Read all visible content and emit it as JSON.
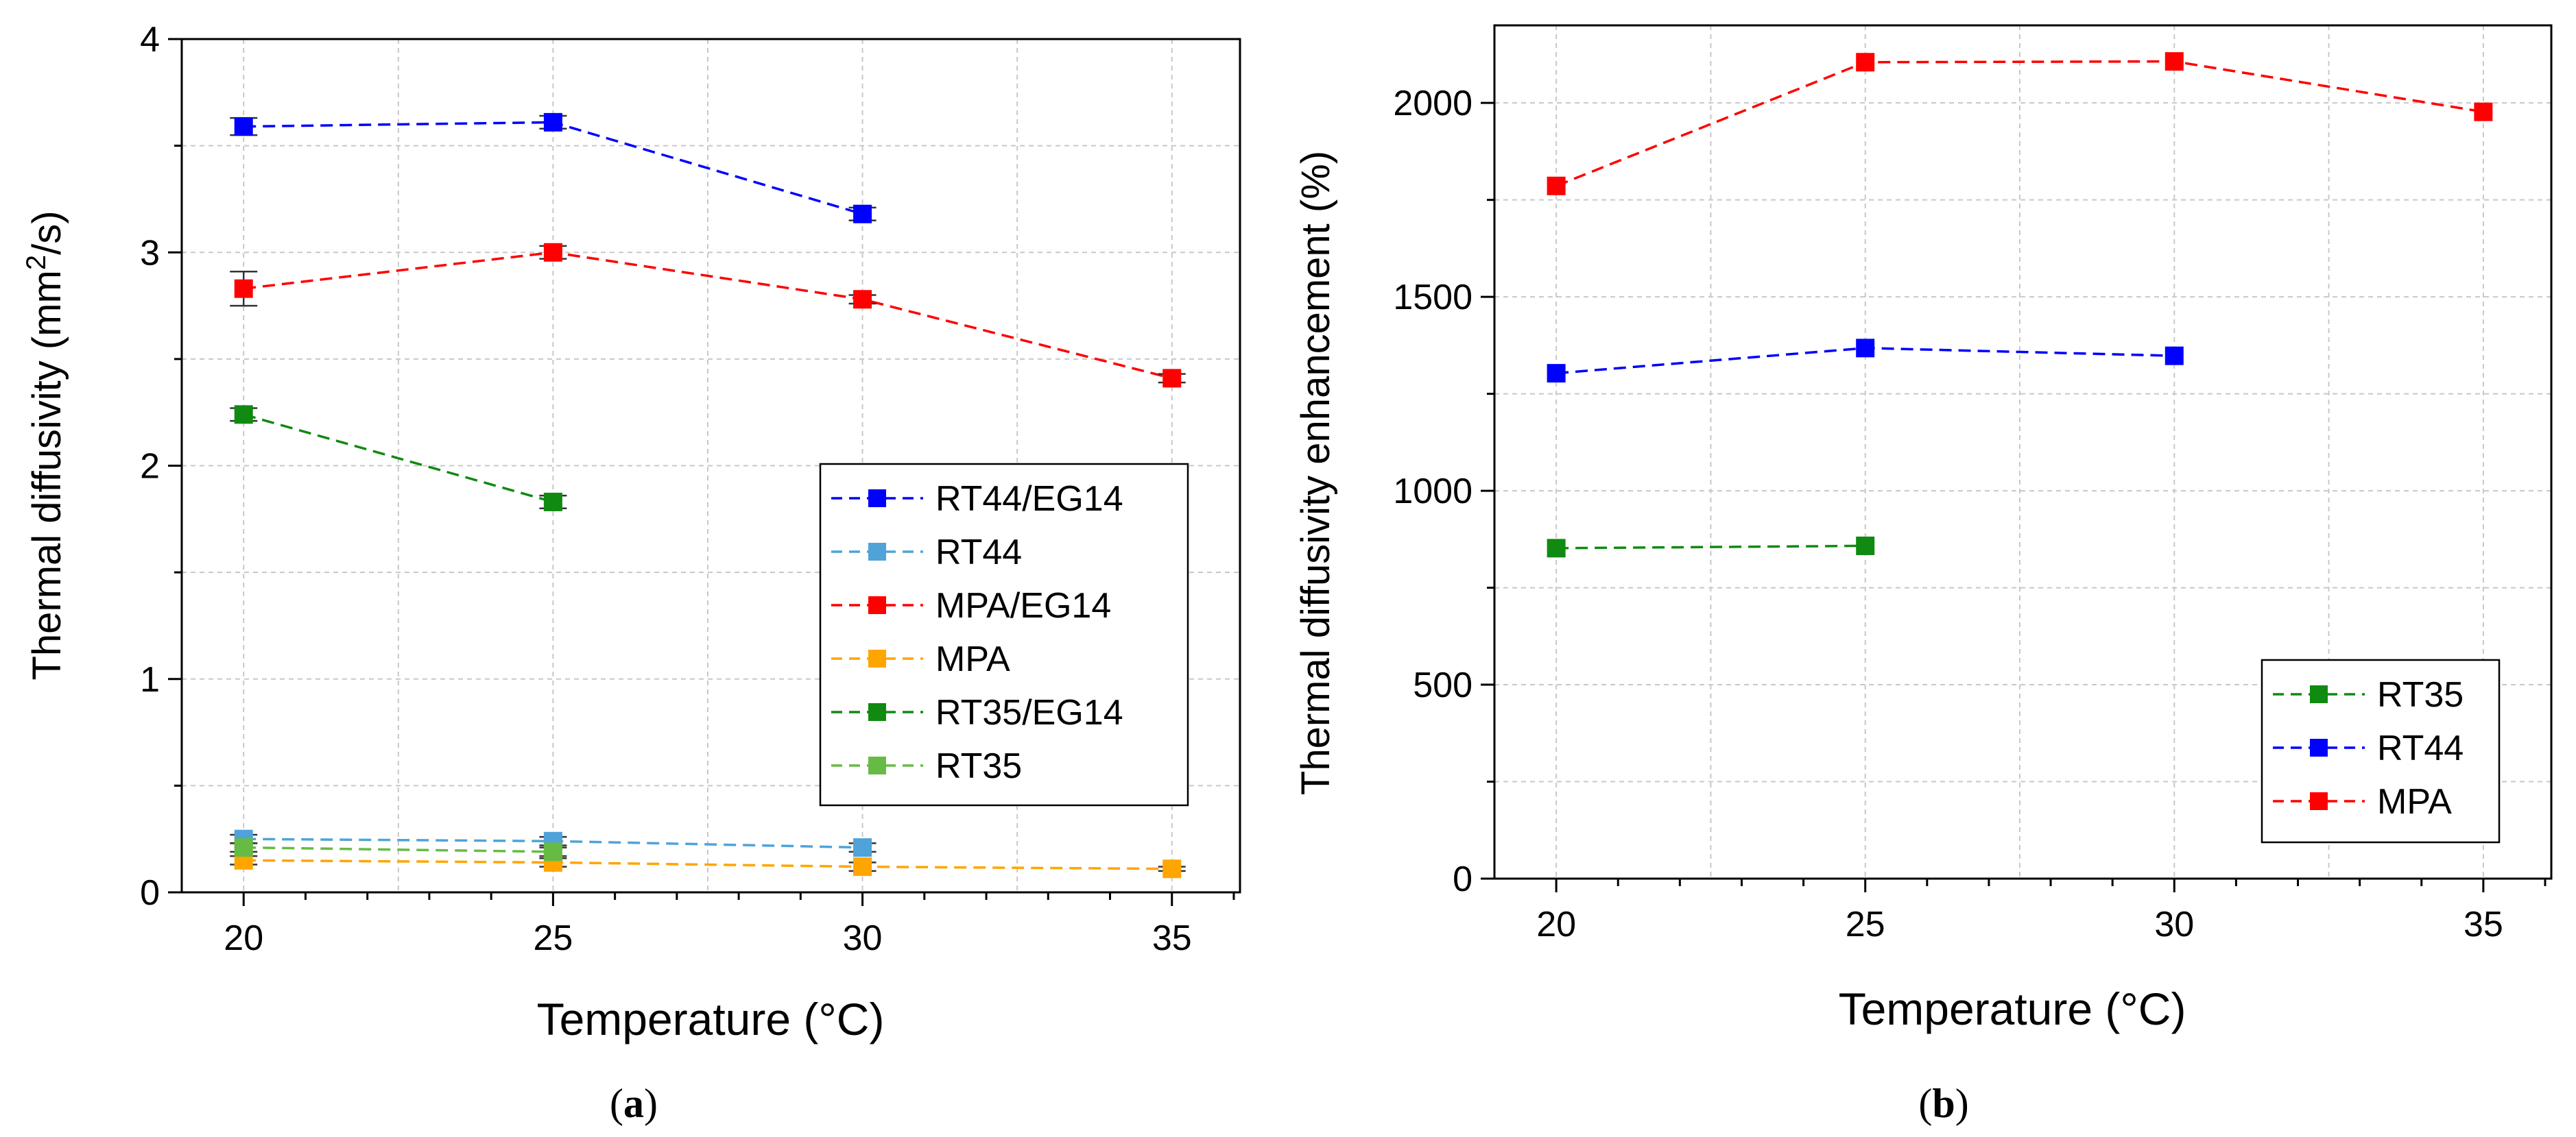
{
  "chart_data": [
    {
      "id": "a",
      "type": "line",
      "panel_label": "a",
      "xlabel": "Temperature (°C)",
      "ylabel_main": "Thermal diffusivity (mm",
      "ylabel_sup": "2",
      "ylabel_tail": "/s)",
      "xlim": [
        19,
        36.1
      ],
      "ylim": [
        0,
        4
      ],
      "xticks": [
        20,
        25,
        30,
        35
      ],
      "yticks": [
        0,
        1,
        2,
        3,
        4
      ],
      "grid": true,
      "legend_position": "center-right",
      "series": [
        {
          "name": "RT44/EG14",
          "color": "#0000ff",
          "x": [
            20,
            25,
            30
          ],
          "y": [
            3.59,
            3.61,
            3.18
          ],
          "err": [
            0.04,
            0.03,
            0.03
          ]
        },
        {
          "name": "RT44",
          "color": "#4fa3d8",
          "x": [
            20,
            25,
            30
          ],
          "y": [
            0.25,
            0.24,
            0.21
          ],
          "err": [
            0.02,
            0.02,
            0.02
          ]
        },
        {
          "name": "MPA/EG14",
          "color": "#ff0000",
          "x": [
            20,
            25,
            30,
            35
          ],
          "y": [
            2.83,
            3.0,
            2.78,
            2.41
          ],
          "err": [
            0.08,
            0.03,
            0.02,
            0.02
          ]
        },
        {
          "name": "MPA",
          "color": "#ffa500",
          "x": [
            20,
            25,
            30,
            35
          ],
          "y": [
            0.15,
            0.14,
            0.12,
            0.11
          ],
          "err": [
            0.02,
            0.02,
            0.02,
            0.01
          ]
        },
        {
          "name": "RT35/EG14",
          "color": "#108a10",
          "x": [
            20,
            25
          ],
          "y": [
            2.24,
            1.83
          ],
          "err": [
            0.03,
            0.03
          ]
        },
        {
          "name": "RT35",
          "color": "#66bb44",
          "x": [
            20,
            25
          ],
          "y": [
            0.21,
            0.19
          ],
          "err": [
            0.02,
            0.02
          ]
        }
      ]
    },
    {
      "id": "b",
      "type": "line",
      "panel_label": "b",
      "xlabel": "Temperature (°C)",
      "ylabel": "Thermal diffusivity enhancement (%)",
      "xlim": [
        19,
        36.1
      ],
      "ylim": [
        0,
        2200
      ],
      "xticks": [
        20,
        25,
        30,
        35
      ],
      "yticks": [
        0,
        500,
        1000,
        1500,
        2000
      ],
      "grid": true,
      "legend_position": "bottom-right",
      "series": [
        {
          "name": "RT35",
          "color": "#108a10",
          "x": [
            20,
            25
          ],
          "y": [
            852,
            858
          ]
        },
        {
          "name": "RT44",
          "color": "#0000ff",
          "x": [
            20,
            25,
            30
          ],
          "y": [
            1303,
            1368,
            1348
          ]
        },
        {
          "name": "MPA",
          "color": "#ff0000",
          "x": [
            20,
            25,
            30,
            35
          ],
          "y": [
            1786,
            2105,
            2107,
            1977
          ]
        }
      ]
    }
  ]
}
